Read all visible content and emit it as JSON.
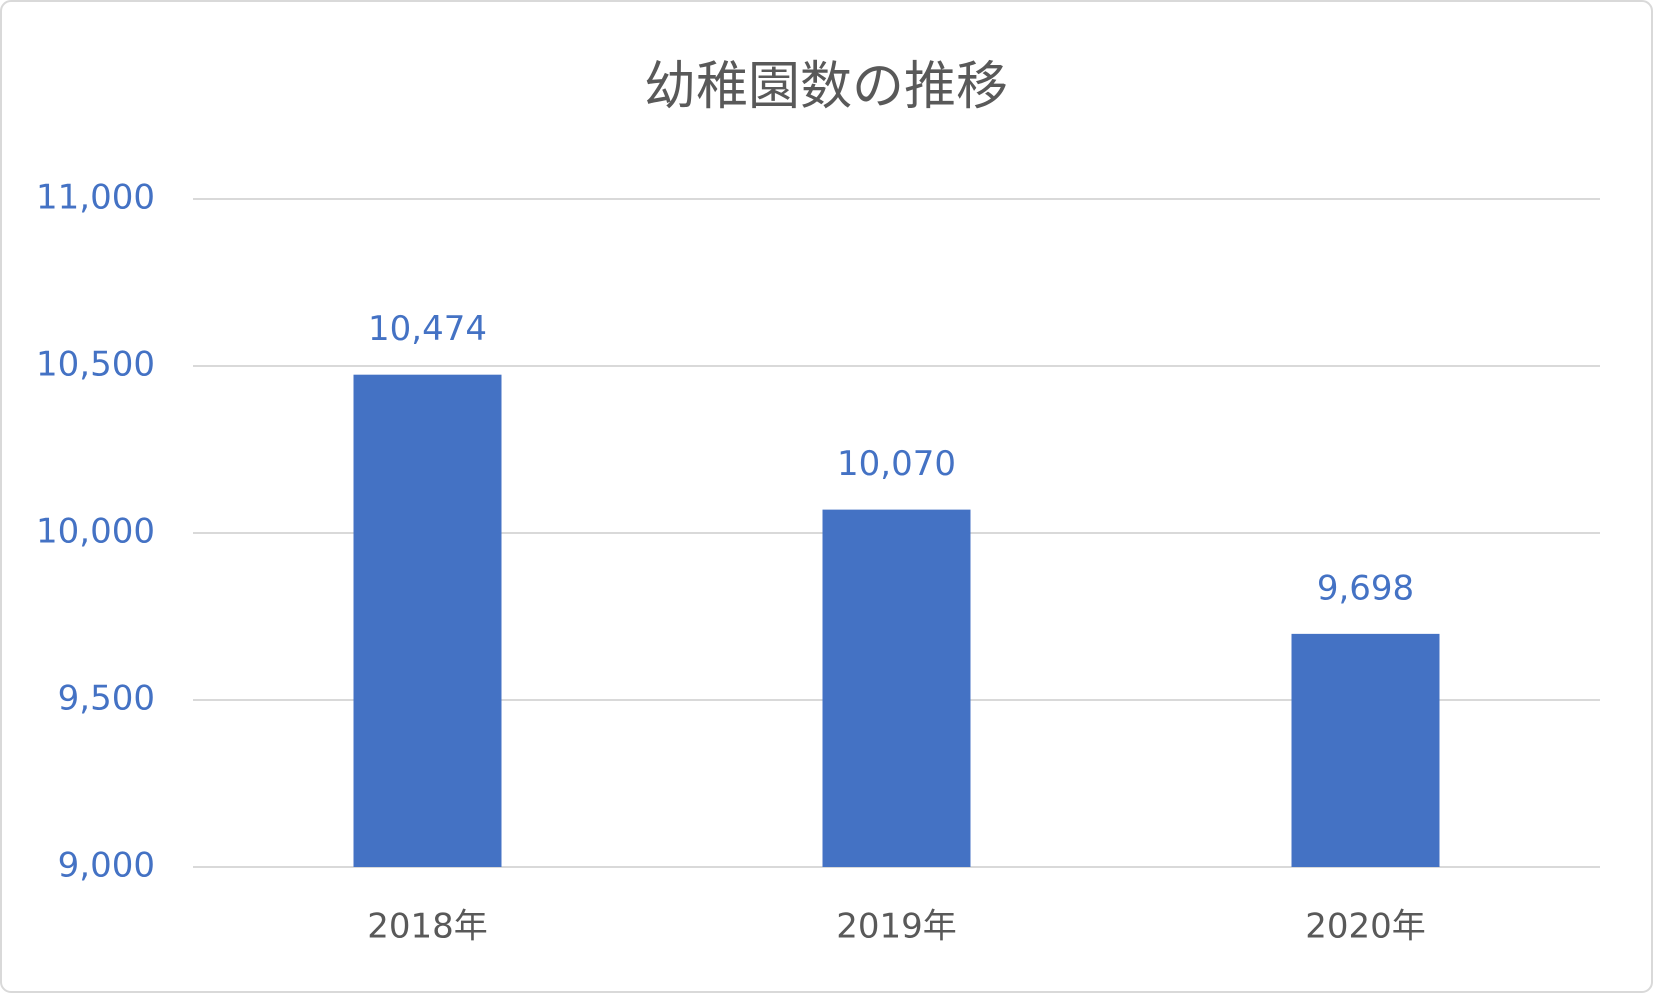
{
  "chart_data": {
    "type": "bar",
    "title": "幼稚園数の推移",
    "categories": [
      "2018年",
      "2019年",
      "2020年"
    ],
    "values": [
      10474,
      10070,
      9698
    ],
    "value_labels": [
      "10,474",
      "10,070",
      "9,698"
    ],
    "color": "#4472c4",
    "ylim": [
      9000,
      11000
    ],
    "yticks": [
      {
        "value": 9000,
        "label": "9,000"
      },
      {
        "value": 9500,
        "label": "9,500"
      },
      {
        "value": 10000,
        "label": "10,000"
      },
      {
        "value": 10500,
        "label": "10,500"
      },
      {
        "value": 11000,
        "label": "11,000"
      }
    ],
    "grid": true
  }
}
